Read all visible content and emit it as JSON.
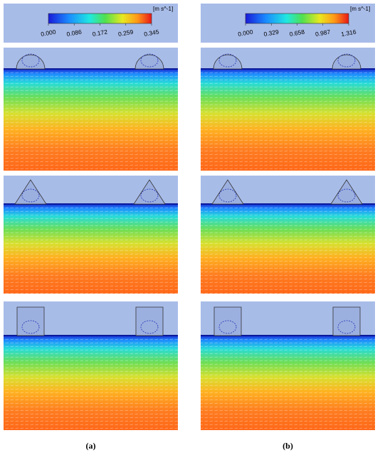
{
  "colorbars": [
    {
      "unit": "[m s^-1]",
      "ticks": [
        "0.000",
        "0.086",
        "0.172",
        "0.259",
        "0.345"
      ]
    },
    {
      "unit": "[m s^-1]",
      "ticks": [
        "0.000",
        "0.329",
        "0.658",
        "0.987",
        "1.316"
      ]
    }
  ],
  "captions": [
    "(a)",
    "(b)"
  ]
}
